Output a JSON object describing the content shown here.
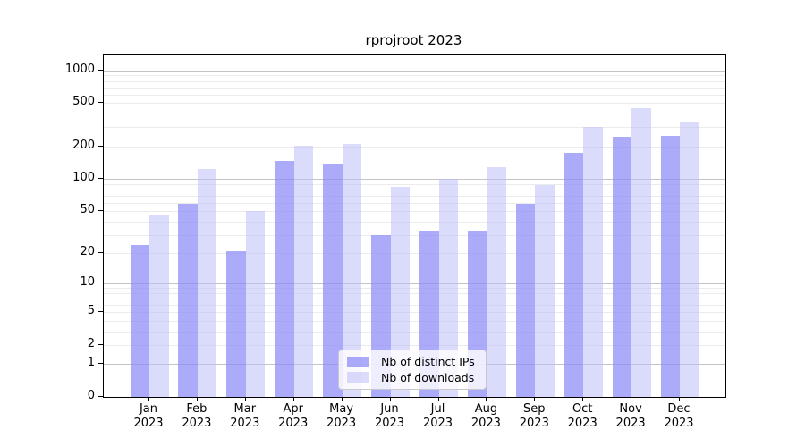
{
  "chart_data": {
    "type": "bar",
    "title": "rprojroot 2023",
    "categories": [
      {
        "month": "Jan",
        "year": "2023"
      },
      {
        "month": "Feb",
        "year": "2023"
      },
      {
        "month": "Mar",
        "year": "2023"
      },
      {
        "month": "Apr",
        "year": "2023"
      },
      {
        "month": "May",
        "year": "2023"
      },
      {
        "month": "Jun",
        "year": "2023"
      },
      {
        "month": "Jul",
        "year": "2023"
      },
      {
        "month": "Aug",
        "year": "2023"
      },
      {
        "month": "Sep",
        "year": "2023"
      },
      {
        "month": "Oct",
        "year": "2023"
      },
      {
        "month": "Nov",
        "year": "2023"
      },
      {
        "month": "Dec",
        "year": "2023"
      }
    ],
    "series": [
      {
        "name": "Nb of distinct IPs",
        "key": "ips",
        "color": "rgba(140,140,248,0.73)",
        "color_on_white_hex": "#ababfa",
        "values": [
          24,
          58,
          21,
          147,
          138,
          30,
          33,
          33,
          58,
          174,
          247,
          252
        ]
      },
      {
        "name": "Nb of downloads",
        "key": "downloads",
        "color": "rgba(190,190,248,0.55)",
        "color_on_white_hex": "#dbdbfb",
        "values": [
          46,
          124,
          50,
          202,
          211,
          84,
          100,
          128,
          87,
          300,
          451,
          339
        ]
      }
    ],
    "y_axis": {
      "scale": "log1p",
      "ticks": [
        0,
        1,
        2,
        5,
        10,
        20,
        50,
        100,
        200,
        500,
        1000
      ],
      "max": 1400,
      "major_gridlines": [
        1,
        10,
        100,
        1000
      ],
      "minor_gridline_multipliers": [
        2,
        3,
        4,
        5,
        6,
        7,
        8,
        9
      ],
      "minor_gridline_decades": [
        1,
        10,
        100
      ]
    },
    "legend": {
      "position": "lower center",
      "entries": [
        "Nb of distinct IPs",
        "Nb of downloads"
      ]
    },
    "colors": {
      "major_grid": "#c4c4c4",
      "minor_grid": "#ebebeb",
      "spine": "#000000",
      "text": "#000000",
      "background": "#ffffff"
    },
    "xlabel": "",
    "ylabel": ""
  }
}
